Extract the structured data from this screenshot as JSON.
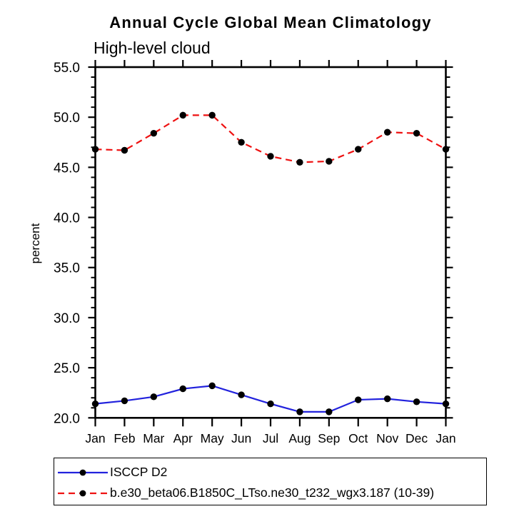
{
  "chart_data": {
    "type": "line",
    "title": "Annual Cycle Global Mean Climatology",
    "subtitle": "High-level cloud",
    "ylabel": "percent",
    "x_categories": [
      "Jan",
      "Feb",
      "Mar",
      "Apr",
      "May",
      "Jun",
      "Jul",
      "Aug",
      "Sep",
      "Oct",
      "Nov",
      "Dec",
      "Jan"
    ],
    "ylim": [
      20.0,
      55.0
    ],
    "ytick_step": 5.0,
    "yminor_step": 1.0,
    "ytick_labels": [
      "20.0",
      "25.0",
      "30.0",
      "35.0",
      "40.0",
      "45.0",
      "50.0",
      "55.0"
    ],
    "grid": false,
    "legend_position": "bottom",
    "axis_color": "#000000",
    "marker_color": "#000000",
    "series": [
      {
        "name": "ISCCP D2",
        "color": "#2222dd",
        "line_style": "solid",
        "marker": "filled-circle",
        "values": [
          21.4,
          21.7,
          22.1,
          22.9,
          23.2,
          22.3,
          21.4,
          20.6,
          20.6,
          21.8,
          21.9,
          21.6,
          21.4
        ]
      },
      {
        "name": "b.e30_beta06.B1850C_LTso.ne30_t232_wgx3.187 (10-39)",
        "color": "#ee1111",
        "line_style": "dashed",
        "marker": "filled-circle",
        "values": [
          46.8,
          46.7,
          48.4,
          50.2,
          50.2,
          47.5,
          46.1,
          45.5,
          45.6,
          46.8,
          48.5,
          48.4,
          46.8
        ]
      }
    ]
  }
}
